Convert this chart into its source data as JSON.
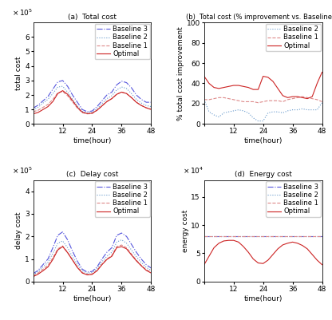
{
  "time": [
    0,
    2,
    4,
    6,
    8,
    10,
    12,
    14,
    16,
    18,
    20,
    22,
    24,
    26,
    28,
    30,
    32,
    34,
    36,
    38,
    40,
    42,
    44,
    46,
    48
  ],
  "total_b3": [
    1.1,
    1.3,
    1.6,
    1.9,
    2.4,
    2.9,
    3.0,
    2.6,
    2.0,
    1.5,
    1.0,
    0.85,
    0.9,
    1.2,
    1.6,
    2.0,
    2.2,
    2.7,
    2.95,
    2.85,
    2.5,
    2.0,
    1.7,
    1.5,
    1.5
  ],
  "total_b2": [
    1.0,
    1.15,
    1.45,
    1.7,
    2.1,
    2.55,
    2.6,
    2.2,
    1.7,
    1.25,
    0.88,
    0.78,
    0.82,
    1.05,
    1.4,
    1.75,
    1.95,
    2.35,
    2.55,
    2.45,
    2.1,
    1.7,
    1.45,
    1.28,
    1.2
  ],
  "total_b1": [
    0.85,
    0.95,
    1.15,
    1.35,
    1.7,
    2.15,
    2.25,
    1.95,
    1.52,
    1.1,
    0.78,
    0.7,
    0.72,
    0.95,
    1.25,
    1.55,
    1.75,
    2.05,
    2.2,
    2.1,
    1.82,
    1.5,
    1.28,
    1.12,
    1.05
  ],
  "total_opt": [
    0.7,
    0.8,
    1.0,
    1.2,
    1.55,
    2.1,
    2.3,
    2.05,
    1.62,
    1.15,
    0.82,
    0.72,
    0.75,
    0.95,
    1.25,
    1.55,
    1.75,
    2.05,
    2.2,
    2.1,
    1.82,
    1.5,
    1.28,
    1.12,
    1.0
  ],
  "pct_b2": [
    24,
    12,
    9,
    7,
    11,
    12,
    13,
    14,
    13,
    11,
    6,
    3,
    3,
    11,
    12,
    12,
    11,
    13,
    14,
    14,
    15,
    14,
    14,
    14,
    21
  ],
  "pct_b1": [
    24,
    24,
    25,
    26,
    26,
    25,
    24,
    23,
    22,
    22,
    22,
    21,
    22,
    23,
    23,
    23,
    22,
    24,
    25,
    26,
    27,
    26,
    25,
    24,
    22
  ],
  "pct_opt": [
    47,
    40,
    36,
    35,
    36,
    37,
    38,
    38,
    37,
    36,
    34,
    34,
    47,
    46,
    42,
    35,
    28,
    26,
    27,
    27,
    26,
    25,
    27,
    40,
    51
  ],
  "delay_b3": [
    0.35,
    0.5,
    0.75,
    1.0,
    1.5,
    2.05,
    2.2,
    1.85,
    1.35,
    0.9,
    0.55,
    0.42,
    0.45,
    0.65,
    1.0,
    1.3,
    1.5,
    2.05,
    2.15,
    2.0,
    1.65,
    1.3,
    1.0,
    0.75,
    0.6
  ],
  "delay_b2": [
    0.3,
    0.45,
    0.65,
    0.85,
    1.25,
    1.7,
    1.8,
    1.5,
    1.1,
    0.75,
    0.48,
    0.37,
    0.4,
    0.57,
    0.88,
    1.12,
    1.3,
    1.75,
    1.85,
    1.7,
    1.4,
    1.1,
    0.85,
    0.63,
    0.5
  ],
  "delay_b1": [
    0.25,
    0.38,
    0.55,
    0.72,
    1.05,
    1.45,
    1.58,
    1.3,
    0.97,
    0.65,
    0.4,
    0.32,
    0.34,
    0.5,
    0.77,
    1.0,
    1.15,
    1.55,
    1.62,
    1.5,
    1.22,
    0.95,
    0.72,
    0.53,
    0.42
  ],
  "delay_opt": [
    0.22,
    0.33,
    0.48,
    0.65,
    0.98,
    1.4,
    1.55,
    1.28,
    0.95,
    0.62,
    0.38,
    0.3,
    0.32,
    0.48,
    0.75,
    0.98,
    1.12,
    1.5,
    1.55,
    1.45,
    1.18,
    0.92,
    0.7,
    0.5,
    0.38
  ],
  "energy_b3": [
    0.8,
    0.8,
    0.8,
    0.8,
    0.8,
    0.8,
    0.8,
    0.8,
    0.8,
    0.8,
    0.8,
    0.8,
    0.8,
    0.8,
    0.8,
    0.8,
    0.8,
    0.8,
    0.8,
    0.8,
    0.8,
    0.8,
    0.8,
    0.8,
    0.8
  ],
  "energy_b2": [
    0.8,
    0.8,
    0.8,
    0.8,
    0.8,
    0.8,
    0.8,
    0.8,
    0.8,
    0.8,
    0.8,
    0.8,
    0.8,
    0.8,
    0.8,
    0.8,
    0.8,
    0.8,
    0.8,
    0.8,
    0.8,
    0.8,
    0.8,
    0.8,
    0.8
  ],
  "energy_b1": [
    0.8,
    0.8,
    0.8,
    0.8,
    0.8,
    0.8,
    0.8,
    0.8,
    0.8,
    0.8,
    0.8,
    0.8,
    0.8,
    0.8,
    0.8,
    0.8,
    0.8,
    0.8,
    0.8,
    0.8,
    0.8,
    0.8,
    0.8,
    0.8,
    0.8
  ],
  "energy_opt": [
    0.3,
    0.45,
    0.6,
    0.68,
    0.72,
    0.73,
    0.73,
    0.7,
    0.62,
    0.52,
    0.4,
    0.33,
    0.32,
    0.38,
    0.48,
    0.58,
    0.65,
    0.68,
    0.7,
    0.68,
    0.64,
    0.58,
    0.48,
    0.38,
    0.3
  ],
  "color_b3": "#5555dd",
  "color_b2": "#6699cc",
  "color_b1": "#dd8888",
  "color_opt": "#cc2222",
  "title_a": "(a)  Total cost",
  "title_b": "(b)  Total cost (% improvement vs. Baseline 3)",
  "title_c": "(c)  Delay cost",
  "title_d": "(d)  Energy cost",
  "ylabel_a": "total cost",
  "ylabel_b": "% total cost improvement",
  "ylabel_c": "delay cost",
  "ylabel_d": "energy cost",
  "xlabel": "time(hour)",
  "xticks": [
    0,
    12,
    24,
    36,
    48
  ],
  "font_size": 6.5
}
